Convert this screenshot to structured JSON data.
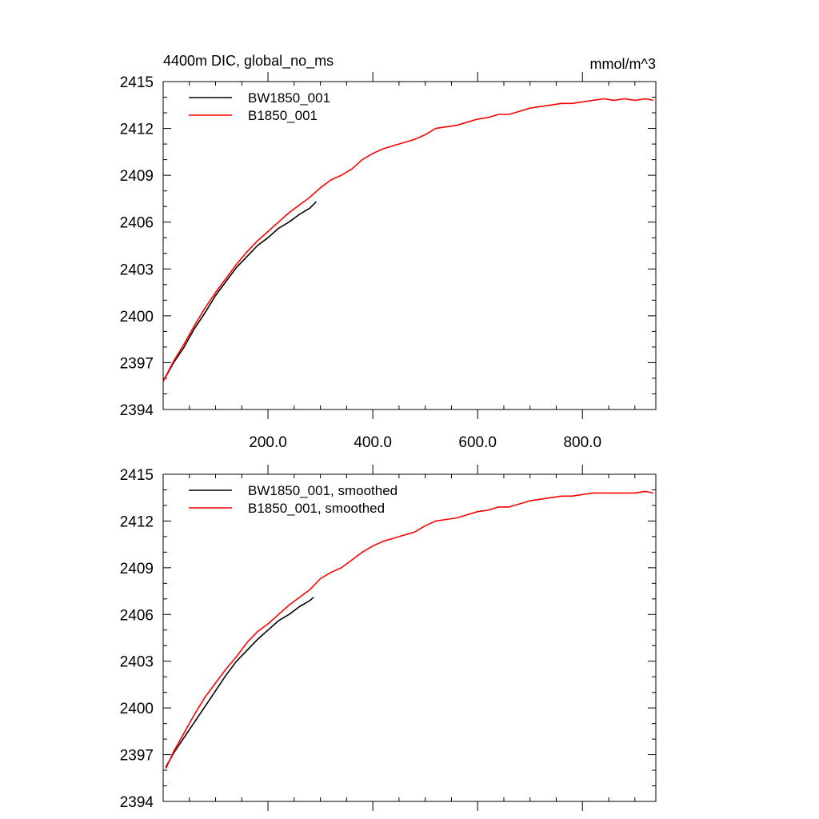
{
  "header": {
    "title_left": "4400m DIC, global_no_ms",
    "title_right": "mmol/m^3"
  },
  "chart_data": [
    {
      "type": "line",
      "title": "4400m DIC, global_no_ms",
      "units": "mmol/m^3",
      "xlim": [
        0,
        940
      ],
      "ylim": [
        2394,
        2415
      ],
      "yticks": [
        2394,
        2397,
        2400,
        2403,
        2406,
        2409,
        2412,
        2415
      ],
      "xticks": [
        200,
        400,
        600,
        800
      ],
      "xtick_labels": [
        "200.0",
        "400.0",
        "600.0",
        "800.0"
      ],
      "legend": "top-left",
      "series": [
        {
          "name": "BW1850_001",
          "color": "#000000",
          "x": [
            0,
            20,
            40,
            60,
            80,
            100,
            120,
            140,
            160,
            180,
            200,
            220,
            240,
            260,
            280,
            292
          ],
          "y": [
            2395.8,
            2397.0,
            2398.0,
            2399.2,
            2400.2,
            2401.3,
            2402.2,
            2403.1,
            2403.8,
            2404.5,
            2405.0,
            2405.6,
            2406.0,
            2406.5,
            2406.9,
            2407.3
          ]
        },
        {
          "name": "B1850_001",
          "color": "#ff0000",
          "x": [
            0,
            20,
            40,
            60,
            80,
            100,
            120,
            140,
            160,
            180,
            200,
            220,
            240,
            260,
            280,
            300,
            320,
            340,
            360,
            380,
            400,
            420,
            440,
            460,
            480,
            500,
            520,
            540,
            560,
            580,
            600,
            620,
            640,
            660,
            680,
            700,
            720,
            740,
            760,
            780,
            800,
            820,
            840,
            860,
            880,
            900,
            920,
            935
          ],
          "y": [
            2395.8,
            2397.1,
            2398.2,
            2399.4,
            2400.5,
            2401.5,
            2402.4,
            2403.3,
            2404.1,
            2404.8,
            2405.4,
            2406.0,
            2406.6,
            2407.1,
            2407.6,
            2408.2,
            2408.7,
            2409.0,
            2409.4,
            2410.0,
            2410.4,
            2410.7,
            2410.9,
            2411.1,
            2411.3,
            2411.6,
            2412.0,
            2412.1,
            2412.2,
            2412.4,
            2412.6,
            2412.7,
            2412.9,
            2412.9,
            2413.1,
            2413.3,
            2413.4,
            2413.5,
            2413.6,
            2413.6,
            2413.7,
            2413.8,
            2413.9,
            2413.8,
            2413.9,
            2413.8,
            2413.9,
            2413.8
          ]
        }
      ]
    },
    {
      "type": "line",
      "xlim": [
        0,
        940
      ],
      "ylim": [
        2394,
        2415
      ],
      "yticks": [
        2394,
        2397,
        2400,
        2403,
        2406,
        2409,
        2412,
        2415
      ],
      "xticks": [
        200,
        400,
        600,
        800
      ],
      "legend": "top-left",
      "series": [
        {
          "name": "BW1850_001, smoothed",
          "color": "#000000",
          "x": [
            5,
            20,
            40,
            60,
            80,
            100,
            120,
            140,
            160,
            180,
            200,
            220,
            240,
            260,
            280,
            287
          ],
          "y": [
            2396.2,
            2397.1,
            2398.1,
            2399.1,
            2400.1,
            2401.1,
            2402.1,
            2403.0,
            2403.7,
            2404.4,
            2405.0,
            2405.6,
            2406.0,
            2406.5,
            2406.9,
            2407.1
          ]
        },
        {
          "name": "B1850_001, smoothed",
          "color": "#ff0000",
          "x": [
            5,
            20,
            40,
            60,
            80,
            100,
            120,
            140,
            160,
            180,
            200,
            220,
            240,
            260,
            280,
            300,
            320,
            340,
            360,
            380,
            400,
            420,
            440,
            460,
            480,
            500,
            520,
            540,
            560,
            580,
            600,
            620,
            640,
            660,
            680,
            700,
            720,
            740,
            760,
            780,
            800,
            820,
            840,
            860,
            880,
            900,
            920,
            935
          ],
          "y": [
            2396.1,
            2397.2,
            2398.4,
            2399.6,
            2400.7,
            2401.6,
            2402.5,
            2403.3,
            2404.2,
            2404.9,
            2405.4,
            2406.0,
            2406.6,
            2407.1,
            2407.6,
            2408.3,
            2408.7,
            2409.0,
            2409.5,
            2410.0,
            2410.4,
            2410.7,
            2410.9,
            2411.1,
            2411.3,
            2411.7,
            2412.0,
            2412.1,
            2412.2,
            2412.4,
            2412.6,
            2412.7,
            2412.9,
            2412.9,
            2413.1,
            2413.3,
            2413.4,
            2413.5,
            2413.6,
            2413.6,
            2413.7,
            2413.8,
            2413.8,
            2413.8,
            2413.8,
            2413.8,
            2413.9,
            2413.8
          ]
        }
      ]
    }
  ]
}
